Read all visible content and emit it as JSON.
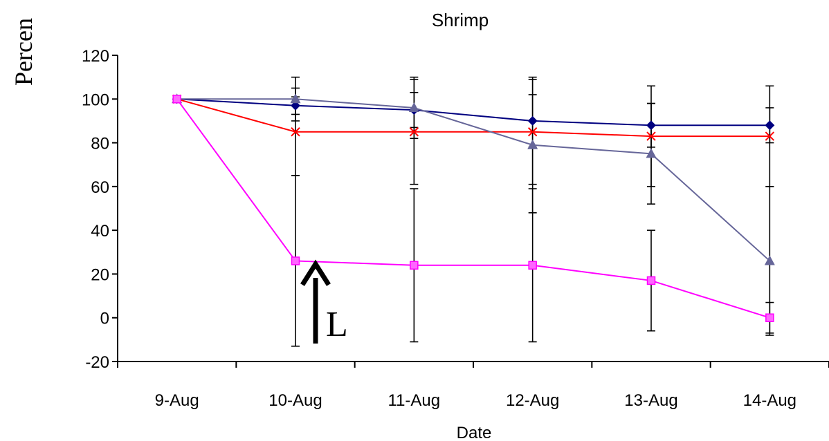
{
  "chart_data": {
    "type": "line",
    "title": "Shrimp",
    "xlabel": "Date",
    "ylabel": "Percen",
    "categories": [
      "9-Aug",
      "10-Aug",
      "11-Aug",
      "12-Aug",
      "13-Aug",
      "14-Aug"
    ],
    "ylim": [
      -20,
      120
    ],
    "yticks": [
      -20,
      0,
      20,
      40,
      60,
      80,
      100,
      120
    ],
    "grid": false,
    "legend": "none",
    "annotation": {
      "text": "L",
      "category": "10-Aug",
      "arrow": "up"
    },
    "series": [
      {
        "color": "#000080",
        "marker": "diamond",
        "values": [
          100,
          97,
          95,
          90,
          88,
          88
        ],
        "errors": [
          null,
          4,
          8,
          12,
          10,
          8
        ]
      },
      {
        "color": "#FF0000",
        "marker": "x",
        "values": [
          100,
          85,
          85,
          85,
          83,
          83
        ],
        "errors": [
          null,
          20,
          24,
          24,
          23,
          23
        ]
      },
      {
        "color": "#666699",
        "marker": "triangle",
        "values": [
          100,
          100,
          96,
          79,
          75,
          26
        ],
        "errors": [
          null,
          10,
          14,
          31,
          23,
          34
        ]
      },
      {
        "color": "#FF00FF",
        "marker": "square",
        "values": [
          100,
          26,
          24,
          24,
          17,
          0
        ],
        "errors": [
          null,
          39,
          35,
          35,
          23,
          7
        ]
      }
    ]
  }
}
